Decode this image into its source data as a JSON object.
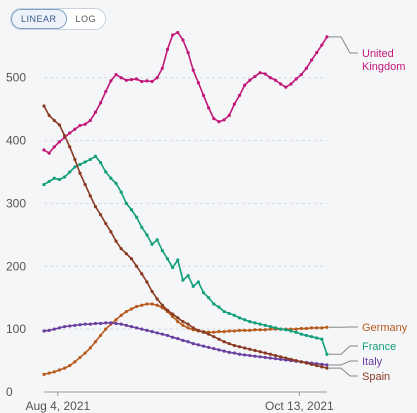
{
  "toolbar": {
    "scale_options": [
      "LINEAR",
      "LOG"
    ],
    "selected": "LINEAR"
  },
  "chart_data": {
    "type": "line",
    "ylim": [
      0,
      560
    ],
    "y_ticks": [
      0,
      100,
      200,
      300,
      400,
      500
    ],
    "x_tick_labels": [
      "Aug 4, 2021",
      "Oct 13, 2021"
    ],
    "x_start": "Jul 31, 2021",
    "x_end": "Oct 21, 2021",
    "grid": true,
    "legend": "line-end labels",
    "series": [
      {
        "name": "United Kingdom",
        "color": "#c2177a",
        "values": [
          385,
          380,
          390,
          398,
          405,
          412,
          418,
          424,
          426,
          432,
          445,
          460,
          478,
          495,
          505,
          500,
          496,
          497,
          498,
          494,
          495,
          494,
          500,
          515,
          545,
          568,
          572,
          560,
          540,
          512,
          492,
          472,
          452,
          435,
          430,
          433,
          440,
          458,
          472,
          488,
          496,
          502,
          508,
          506,
          500,
          496,
          490,
          485,
          490,
          498,
          505,
          515,
          528,
          540,
          552,
          565
        ]
      },
      {
        "name": "Germany",
        "color": "#b85c1e",
        "values": [
          28,
          30,
          32,
          35,
          38,
          42,
          48,
          55,
          62,
          70,
          80,
          90,
          100,
          108,
          115,
          122,
          128,
          132,
          136,
          138,
          140,
          140,
          138,
          134,
          128,
          120,
          112,
          106,
          102,
          99,
          97,
          96,
          95,
          95,
          96,
          96,
          97,
          97,
          98,
          98,
          98,
          99,
          99,
          99,
          100,
          100,
          100,
          100,
          100,
          100,
          101,
          101,
          102,
          102,
          102,
          103
        ]
      },
      {
        "name": "France",
        "color": "#129e7b",
        "values": [
          330,
          335,
          340,
          338,
          342,
          350,
          358,
          362,
          366,
          370,
          375,
          365,
          350,
          340,
          332,
          318,
          300,
          290,
          278,
          262,
          250,
          235,
          242,
          225,
          212,
          198,
          210,
          178,
          185,
          168,
          175,
          158,
          150,
          140,
          135,
          128,
          125,
          122,
          118,
          115,
          112,
          110,
          108,
          106,
          104,
          102,
          100,
          99,
          97,
          95,
          92,
          90,
          88,
          86,
          84,
          60
        ]
      },
      {
        "name": "Italy",
        "color": "#6a3fa0",
        "values": [
          97,
          98,
          100,
          102,
          104,
          105,
          106,
          107,
          108,
          108,
          109,
          109,
          110,
          110,
          109,
          108,
          106,
          104,
          102,
          100,
          98,
          96,
          94,
          92,
          90,
          87,
          85,
          82,
          80,
          77,
          75,
          73,
          71,
          69,
          67,
          65,
          63,
          62,
          60,
          59,
          58,
          57,
          56,
          55,
          54,
          53,
          52,
          51,
          50,
          49,
          48,
          47,
          46,
          45,
          44,
          43
        ]
      },
      {
        "name": "Spain",
        "color": "#8a3a22",
        "values": [
          455,
          440,
          432,
          425,
          408,
          390,
          370,
          348,
          330,
          312,
          295,
          282,
          268,
          255,
          240,
          228,
          220,
          212,
          200,
          188,
          175,
          160,
          148,
          138,
          130,
          124,
          118,
          112,
          108,
          102,
          98,
          95,
          92,
          88,
          84,
          80,
          77,
          74,
          72,
          70,
          68,
          66,
          64,
          62,
          60,
          58,
          56,
          54,
          52,
          50,
          48,
          46,
          44,
          42,
          40,
          38
        ]
      }
    ],
    "end_labels": [
      {
        "name": "United Kingdom",
        "lines": [
          "United",
          "Kingdom"
        ]
      },
      {
        "name": "Germany",
        "lines": [
          "Germany"
        ]
      },
      {
        "name": "France",
        "lines": [
          "France"
        ]
      },
      {
        "name": "Italy",
        "lines": [
          "Italy"
        ]
      },
      {
        "name": "Spain",
        "lines": [
          "Spain"
        ]
      }
    ]
  }
}
